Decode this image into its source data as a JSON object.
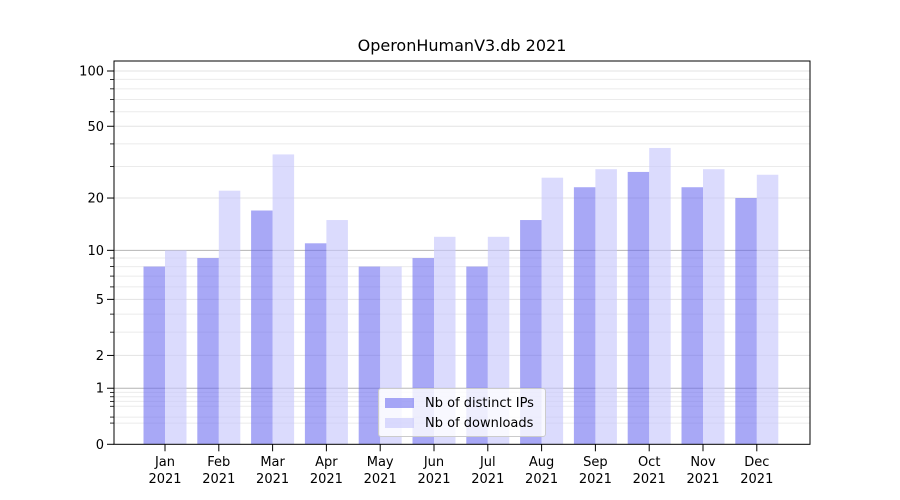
{
  "chart_data": {
    "type": "bar",
    "title": "OperonHumanV3.db 2021",
    "categories": [
      "Jan",
      "Feb",
      "Mar",
      "Apr",
      "May",
      "Jun",
      "Jul",
      "Aug",
      "Sep",
      "Oct",
      "Nov",
      "Dec"
    ],
    "category_year": "2021",
    "series": [
      {
        "key": "distinct-ips",
        "name": "Nb of distinct IPs",
        "color": "rgba(105,105,240,0.58)",
        "values": [
          8,
          9,
          17,
          11,
          8,
          9,
          8,
          15,
          23,
          28,
          23,
          20
        ]
      },
      {
        "key": "downloads",
        "name": "Nb of downloads",
        "color": "rgba(200,200,252,0.66)",
        "values": [
          10,
          22,
          35,
          15,
          8,
          12,
          12,
          26,
          29,
          38,
          29,
          27
        ]
      }
    ],
    "yscale": "log1p",
    "ylim": [
      0,
      113
    ],
    "yticks": [
      0,
      1,
      2,
      5,
      10,
      20,
      50,
      100
    ],
    "yticks_emphasized_grid": [
      1,
      10
    ],
    "yticks_minor": [
      0.3,
      0.4,
      0.6,
      0.7,
      0.8,
      0.9,
      3,
      4,
      6,
      7,
      8,
      9,
      30,
      40,
      60,
      70,
      80,
      90
    ],
    "grid": true,
    "legend_position": "lower center",
    "xlabel": "",
    "ylabel": ""
  },
  "colors": {
    "grid_major": "#b4b4b4",
    "grid_labeled": "#e3e3e3",
    "grid_minor": "#ebebeb",
    "axis": "#000000",
    "text": "#000000",
    "legend_border": "#cbcbcb",
    "background": "#ffffff"
  }
}
